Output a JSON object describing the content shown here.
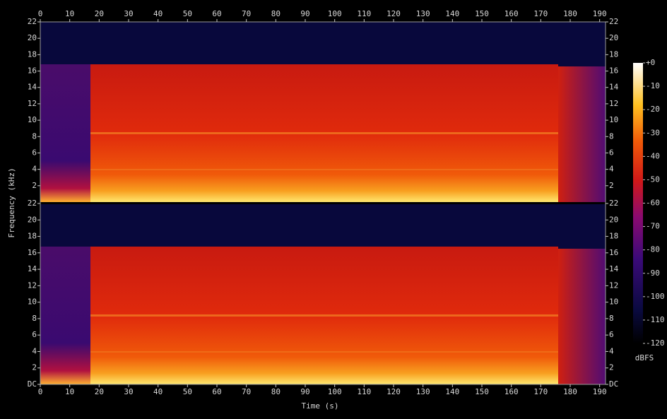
{
  "chart_data": {
    "type": "spectrogram",
    "x_label": "Time (s)",
    "y_label": "Frequency (kHz)",
    "xlim": [
      0,
      192
    ],
    "xticks": [
      0,
      10,
      20,
      30,
      40,
      50,
      60,
      70,
      80,
      90,
      100,
      110,
      120,
      130,
      140,
      150,
      160,
      170,
      180,
      190
    ],
    "ylim": [
      0,
      22
    ],
    "panels": [
      {
        "yticks": [
          2,
          4,
          6,
          8,
          10,
          12,
          14,
          16,
          18,
          20,
          22
        ]
      },
      {
        "yticks": [
          {
            "value": 0,
            "label": "DC"
          },
          2,
          4,
          6,
          8,
          10,
          12,
          14,
          16,
          18,
          20,
          22
        ]
      }
    ],
    "colorbar": {
      "label": "dBFS",
      "lim": [
        -120,
        0
      ],
      "ticks": [
        {
          "value": 0,
          "label": "+0"
        },
        -10,
        -20,
        -30,
        -40,
        -50,
        -60,
        -70,
        -80,
        -90,
        -100,
        -110,
        -120
      ]
    }
  }
}
